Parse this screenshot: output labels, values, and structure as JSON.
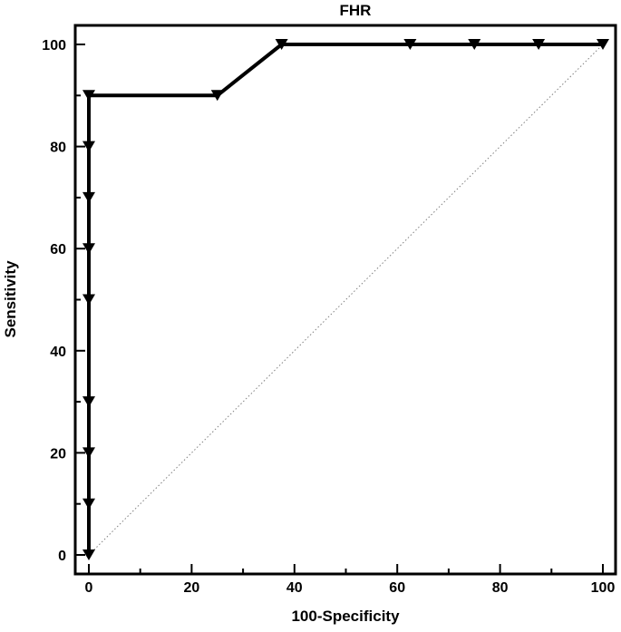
{
  "chart_data": {
    "type": "line",
    "title": "FHR",
    "xlabel": "100-Specificity",
    "ylabel": "Sensitivity",
    "xlim": [
      0,
      100
    ],
    "ylim": [
      0,
      100
    ],
    "x_ticks": [
      0,
      20,
      40,
      60,
      80,
      100
    ],
    "y_ticks": [
      0,
      20,
      40,
      60,
      80,
      100
    ],
    "grid": false,
    "legend": "none",
    "series": [
      {
        "marker": "triangle-down",
        "color": "#000000",
        "x": [
          0,
          0,
          0,
          0,
          0,
          0,
          0,
          0,
          0,
          25,
          37.5,
          62.5,
          75,
          87.5,
          100
        ],
        "y": [
          0,
          10,
          20,
          30,
          50,
          60,
          70,
          80,
          90,
          90,
          100,
          100,
          100,
          100,
          100
        ]
      }
    ],
    "reference_line": {
      "style": "dotted",
      "color": "#808080",
      "x": [
        0,
        100
      ],
      "y": [
        0,
        100
      ]
    }
  }
}
